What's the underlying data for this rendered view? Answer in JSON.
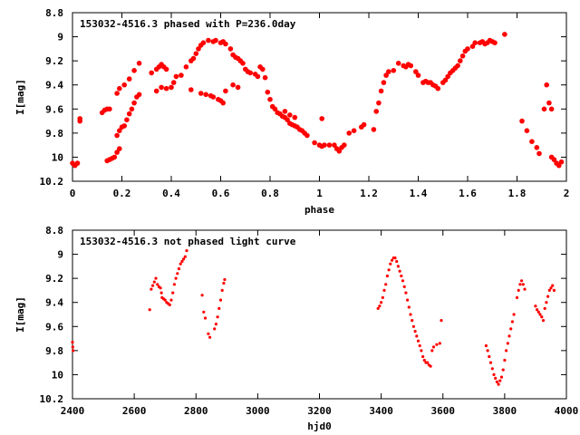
{
  "chart_data": [
    {
      "type": "scatter",
      "title": "153032-4516.3 phased with P=236.0day",
      "xlabel": "phase",
      "ylabel": "I[mag]",
      "xlim": [
        0,
        2
      ],
      "ylim": [
        10.2,
        8.8
      ],
      "y_inverted": true,
      "grid": false,
      "marker_color": "#ff0000",
      "marker": "filled-circle",
      "xticks": [
        0,
        0.2,
        0.4,
        0.6,
        0.8,
        1,
        1.2,
        1.4,
        1.6,
        1.8,
        2
      ],
      "xtick_labels": [
        "0",
        "0.2",
        "0.4",
        "0.6",
        "0.8",
        "1",
        "1.2",
        "1.4",
        "1.6",
        "1.8",
        "2"
      ],
      "yticks": [
        8.8,
        9,
        9.2,
        9.4,
        9.6,
        9.8,
        10,
        10.2
      ],
      "ytick_labels": [
        "8.8",
        "9",
        "9.2",
        "9.4",
        "9.6",
        "9.8",
        "10",
        "10.2"
      ],
      "points": [
        [
          0.0,
          10.05
        ],
        [
          0.01,
          10.07
        ],
        [
          0.02,
          10.05
        ],
        [
          0.03,
          9.7
        ],
        [
          0.03,
          9.68
        ],
        [
          0.12,
          9.63
        ],
        [
          0.13,
          9.61
        ],
        [
          0.14,
          9.6
        ],
        [
          0.15,
          9.6
        ],
        [
          0.14,
          10.03
        ],
        [
          0.15,
          10.02
        ],
        [
          0.16,
          10.01
        ],
        [
          0.17,
          10.0
        ],
        [
          0.18,
          9.96
        ],
        [
          0.19,
          9.93
        ],
        [
          0.18,
          9.82
        ],
        [
          0.19,
          9.78
        ],
        [
          0.2,
          9.75
        ],
        [
          0.21,
          9.74
        ],
        [
          0.22,
          9.69
        ],
        [
          0.23,
          9.64
        ],
        [
          0.24,
          9.6
        ],
        [
          0.25,
          9.55
        ],
        [
          0.26,
          9.5
        ],
        [
          0.27,
          9.48
        ],
        [
          0.18,
          9.47
        ],
        [
          0.19,
          9.43
        ],
        [
          0.21,
          9.4
        ],
        [
          0.23,
          9.35
        ],
        [
          0.25,
          9.28
        ],
        [
          0.27,
          9.22
        ],
        [
          0.32,
          9.3
        ],
        [
          0.34,
          9.27
        ],
        [
          0.35,
          9.25
        ],
        [
          0.36,
          9.23
        ],
        [
          0.37,
          9.25
        ],
        [
          0.38,
          9.27
        ],
        [
          0.34,
          9.45
        ],
        [
          0.36,
          9.42
        ],
        [
          0.38,
          9.43
        ],
        [
          0.4,
          9.42
        ],
        [
          0.41,
          9.38
        ],
        [
          0.42,
          9.33
        ],
        [
          0.44,
          9.32
        ],
        [
          0.46,
          9.25
        ],
        [
          0.48,
          9.2
        ],
        [
          0.49,
          9.18
        ],
        [
          0.5,
          9.14
        ],
        [
          0.51,
          9.1
        ],
        [
          0.52,
          9.07
        ],
        [
          0.53,
          9.05
        ],
        [
          0.55,
          9.03
        ],
        [
          0.57,
          9.04
        ],
        [
          0.58,
          9.03
        ],
        [
          0.6,
          9.05
        ],
        [
          0.61,
          9.04
        ],
        [
          0.62,
          9.06
        ],
        [
          0.64,
          9.1
        ],
        [
          0.65,
          9.15
        ],
        [
          0.66,
          9.17
        ],
        [
          0.67,
          9.18
        ],
        [
          0.68,
          9.2
        ],
        [
          0.69,
          9.22
        ],
        [
          0.7,
          9.27
        ],
        [
          0.71,
          9.29
        ],
        [
          0.72,
          9.3
        ],
        [
          0.74,
          9.31
        ],
        [
          0.75,
          9.33
        ],
        [
          0.76,
          9.25
        ],
        [
          0.77,
          9.27
        ],
        [
          0.78,
          9.34
        ],
        [
          0.52,
          9.47
        ],
        [
          0.54,
          9.48
        ],
        [
          0.56,
          9.49
        ],
        [
          0.57,
          9.5
        ],
        [
          0.59,
          9.52
        ],
        [
          0.6,
          9.53
        ],
        [
          0.61,
          9.55
        ],
        [
          0.48,
          9.44
        ],
        [
          0.62,
          9.45
        ],
        [
          0.65,
          9.4
        ],
        [
          0.67,
          9.42
        ],
        [
          0.79,
          9.46
        ],
        [
          0.8,
          9.52
        ],
        [
          0.81,
          9.58
        ],
        [
          0.82,
          9.6
        ],
        [
          0.83,
          9.63
        ],
        [
          0.84,
          9.64
        ],
        [
          0.85,
          9.66
        ],
        [
          0.86,
          9.67
        ],
        [
          0.87,
          9.69
        ],
        [
          0.88,
          9.72
        ],
        [
          0.89,
          9.73
        ],
        [
          0.9,
          9.74
        ],
        [
          0.91,
          9.75
        ],
        [
          0.92,
          9.77
        ],
        [
          0.93,
          9.78
        ],
        [
          0.94,
          9.8
        ],
        [
          0.95,
          9.82
        ],
        [
          0.86,
          9.62
        ],
        [
          0.88,
          9.65
        ],
        [
          0.9,
          9.67
        ],
        [
          0.98,
          9.88
        ],
        [
          1.0,
          9.9
        ],
        [
          1.01,
          9.91
        ],
        [
          1.02,
          9.9
        ],
        [
          1.04,
          9.9
        ],
        [
          1.06,
          9.9
        ],
        [
          1.01,
          9.68
        ],
        [
          1.07,
          9.93
        ],
        [
          1.08,
          9.95
        ],
        [
          1.09,
          9.92
        ],
        [
          1.1,
          9.9
        ],
        [
          1.12,
          9.8
        ],
        [
          1.14,
          9.78
        ],
        [
          1.17,
          9.75
        ],
        [
          1.18,
          9.73
        ],
        [
          1.22,
          9.77
        ],
        [
          1.23,
          9.62
        ],
        [
          1.24,
          9.55
        ],
        [
          1.25,
          9.45
        ],
        [
          1.26,
          9.38
        ],
        [
          1.27,
          9.32
        ],
        [
          1.28,
          9.29
        ],
        [
          1.3,
          9.28
        ],
        [
          1.32,
          9.22
        ],
        [
          1.34,
          9.24
        ],
        [
          1.35,
          9.25
        ],
        [
          1.36,
          9.23
        ],
        [
          1.37,
          9.24
        ],
        [
          1.39,
          9.29
        ],
        [
          1.4,
          9.32
        ],
        [
          1.42,
          9.38
        ],
        [
          1.43,
          9.37
        ],
        [
          1.44,
          9.38
        ],
        [
          1.45,
          9.38
        ],
        [
          1.46,
          9.4
        ],
        [
          1.47,
          9.41
        ],
        [
          1.48,
          9.43
        ],
        [
          1.5,
          9.38
        ],
        [
          1.51,
          9.36
        ],
        [
          1.52,
          9.33
        ],
        [
          1.53,
          9.3
        ],
        [
          1.54,
          9.28
        ],
        [
          1.55,
          9.26
        ],
        [
          1.56,
          9.24
        ],
        [
          1.57,
          9.2
        ],
        [
          1.58,
          9.16
        ],
        [
          1.59,
          9.12
        ],
        [
          1.6,
          9.1
        ],
        [
          1.62,
          9.08
        ],
        [
          1.63,
          9.05
        ],
        [
          1.65,
          9.05
        ],
        [
          1.66,
          9.04
        ],
        [
          1.67,
          9.06
        ],
        [
          1.68,
          9.05
        ],
        [
          1.69,
          9.03
        ],
        [
          1.7,
          9.04
        ],
        [
          1.71,
          9.05
        ],
        [
          1.75,
          8.98
        ],
        [
          1.82,
          9.7
        ],
        [
          1.84,
          9.78
        ],
        [
          1.86,
          9.87
        ],
        [
          1.88,
          9.92
        ],
        [
          1.89,
          9.97
        ],
        [
          1.91,
          9.6
        ],
        [
          1.92,
          9.4
        ],
        [
          1.93,
          9.55
        ],
        [
          1.94,
          9.6
        ],
        [
          1.94,
          10.0
        ],
        [
          1.95,
          10.02
        ],
        [
          1.96,
          10.05
        ],
        [
          1.97,
          10.07
        ],
        [
          1.98,
          10.04
        ]
      ]
    },
    {
      "type": "scatter",
      "title": "153032-4516.3 not phased light curve",
      "xlabel": "hjd0",
      "ylabel": "I[mag]",
      "xlim": [
        2400,
        4000
      ],
      "ylim": [
        10.2,
        8.8
      ],
      "y_inverted": true,
      "grid": false,
      "marker_color": "#ff0000",
      "marker": "filled-circle",
      "xticks": [
        2400,
        2600,
        2800,
        3000,
        3200,
        3400,
        3600,
        3800,
        4000
      ],
      "xtick_labels": [
        "2400",
        "2600",
        "2800",
        "3000",
        "3200",
        "3400",
        "3600",
        "3800",
        "4000"
      ],
      "yticks": [
        8.8,
        9,
        9.2,
        9.4,
        9.6,
        9.8,
        10,
        10.2
      ],
      "ytick_labels": [
        "8.8",
        "9",
        "9.2",
        "9.4",
        "9.6",
        "9.8",
        "10",
        "10.2"
      ],
      "points": [
        [
          2400,
          9.73
        ],
        [
          2401,
          9.77
        ],
        [
          2402,
          9.8
        ],
        [
          2650,
          9.46
        ],
        [
          2655,
          9.29
        ],
        [
          2660,
          9.26
        ],
        [
          2665,
          9.23
        ],
        [
          2670,
          9.2
        ],
        [
          2675,
          9.25
        ],
        [
          2680,
          9.27
        ],
        [
          2685,
          9.28
        ],
        [
          2688,
          9.32
        ],
        [
          2690,
          9.36
        ],
        [
          2695,
          9.37
        ],
        [
          2700,
          9.38
        ],
        [
          2705,
          9.4
        ],
        [
          2710,
          9.41
        ],
        [
          2715,
          9.42
        ],
        [
          2720,
          9.38
        ],
        [
          2725,
          9.32
        ],
        [
          2730,
          9.25
        ],
        [
          2735,
          9.2
        ],
        [
          2740,
          9.16
        ],
        [
          2745,
          9.12
        ],
        [
          2750,
          9.08
        ],
        [
          2755,
          9.06
        ],
        [
          2760,
          9.04
        ],
        [
          2765,
          9.02
        ],
        [
          2770,
          8.97
        ],
        [
          2820,
          9.34
        ],
        [
          2825,
          9.48
        ],
        [
          2830,
          9.53
        ],
        [
          2840,
          9.66
        ],
        [
          2845,
          9.69
        ],
        [
          2860,
          9.62
        ],
        [
          2865,
          9.58
        ],
        [
          2870,
          9.52
        ],
        [
          2875,
          9.45
        ],
        [
          2880,
          9.38
        ],
        [
          2885,
          9.3
        ],
        [
          2890,
          9.24
        ],
        [
          2893,
          9.21
        ],
        [
          3390,
          9.45
        ],
        [
          3395,
          9.43
        ],
        [
          3400,
          9.4
        ],
        [
          3405,
          9.36
        ],
        [
          3410,
          9.3
        ],
        [
          3415,
          9.25
        ],
        [
          3420,
          9.18
        ],
        [
          3425,
          9.13
        ],
        [
          3430,
          9.08
        ],
        [
          3435,
          9.05
        ],
        [
          3440,
          9.03
        ],
        [
          3445,
          9.03
        ],
        [
          3450,
          9.06
        ],
        [
          3455,
          9.1
        ],
        [
          3460,
          9.14
        ],
        [
          3465,
          9.18
        ],
        [
          3470,
          9.22
        ],
        [
          3475,
          9.27
        ],
        [
          3480,
          9.32
        ],
        [
          3485,
          9.38
        ],
        [
          3490,
          9.44
        ],
        [
          3495,
          9.5
        ],
        [
          3500,
          9.55
        ],
        [
          3505,
          9.6
        ],
        [
          3510,
          9.64
        ],
        [
          3515,
          9.68
        ],
        [
          3520,
          9.72
        ],
        [
          3525,
          9.76
        ],
        [
          3530,
          9.8
        ],
        [
          3535,
          9.85
        ],
        [
          3540,
          9.88
        ],
        [
          3545,
          9.9
        ],
        [
          3550,
          9.9
        ],
        [
          3555,
          9.92
        ],
        [
          3560,
          9.93
        ],
        [
          3565,
          9.8
        ],
        [
          3570,
          9.77
        ],
        [
          3580,
          9.75
        ],
        [
          3590,
          9.74
        ],
        [
          3595,
          9.55
        ],
        [
          3740,
          9.76
        ],
        [
          3745,
          9.8
        ],
        [
          3750,
          9.85
        ],
        [
          3755,
          9.9
        ],
        [
          3760,
          9.95
        ],
        [
          3765,
          10.0
        ],
        [
          3770,
          10.03
        ],
        [
          3775,
          10.06
        ],
        [
          3780,
          10.08
        ],
        [
          3785,
          10.05
        ],
        [
          3790,
          10.02
        ],
        [
          3795,
          9.96
        ],
        [
          3800,
          9.88
        ],
        [
          3805,
          9.8
        ],
        [
          3810,
          9.74
        ],
        [
          3815,
          9.68
        ],
        [
          3820,
          9.62
        ],
        [
          3825,
          9.56
        ],
        [
          3830,
          9.5
        ],
        [
          3840,
          9.36
        ],
        [
          3845,
          9.3
        ],
        [
          3850,
          9.25
        ],
        [
          3855,
          9.22
        ],
        [
          3860,
          9.25
        ],
        [
          3865,
          9.29
        ],
        [
          3900,
          9.43
        ],
        [
          3905,
          9.46
        ],
        [
          3910,
          9.48
        ],
        [
          3915,
          9.5
        ],
        [
          3920,
          9.52
        ],
        [
          3925,
          9.55
        ],
        [
          3930,
          9.45
        ],
        [
          3935,
          9.4
        ],
        [
          3940,
          9.35
        ],
        [
          3945,
          9.3
        ],
        [
          3950,
          9.28
        ],
        [
          3955,
          9.26
        ],
        [
          3960,
          9.3
        ]
      ]
    }
  ]
}
